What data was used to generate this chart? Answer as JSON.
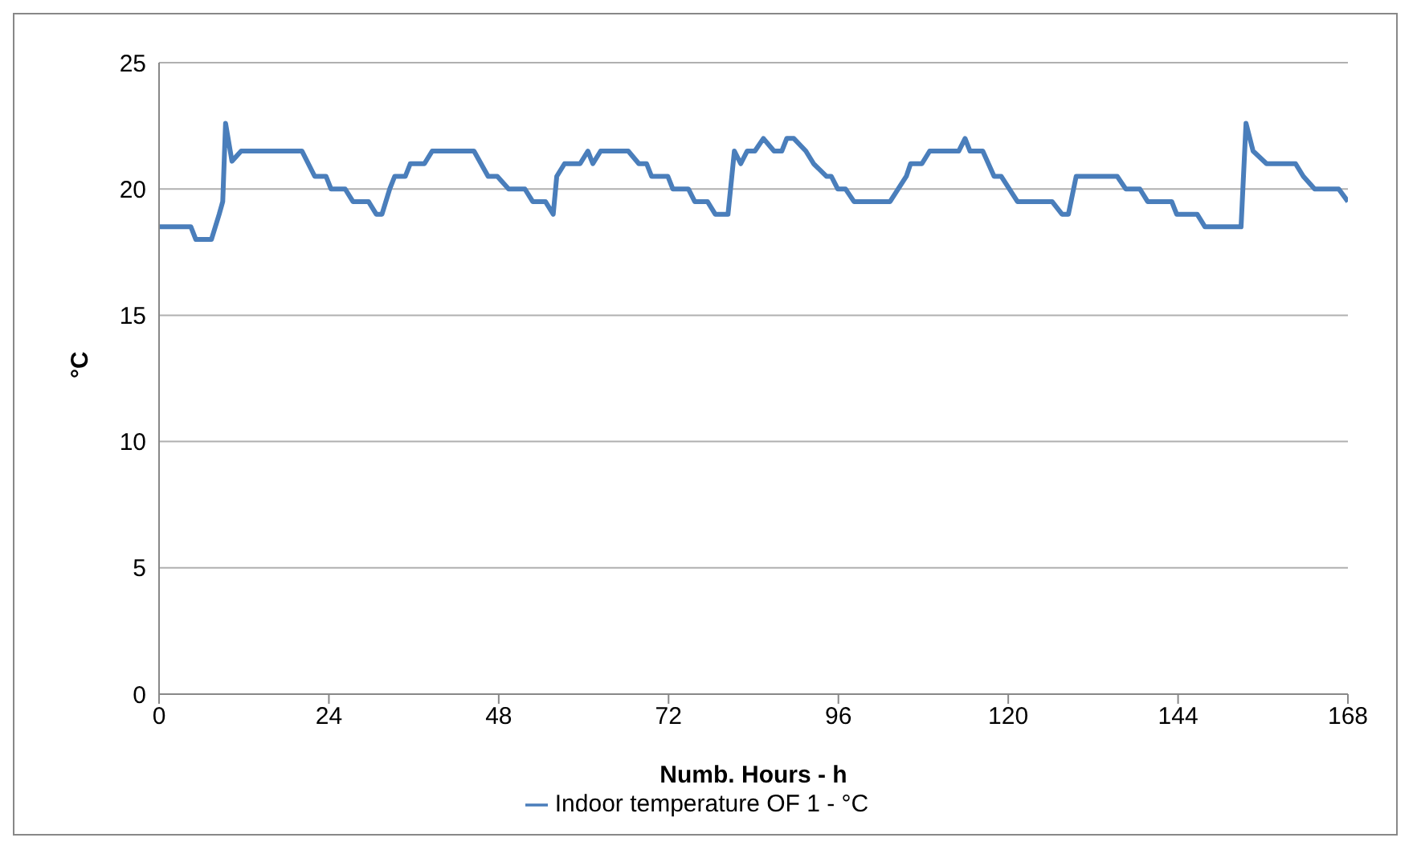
{
  "chart_data": {
    "type": "line",
    "xlabel": "Numb. Hours - h",
    "ylabel": "°C",
    "xlim": [
      0,
      168
    ],
    "xticks": [
      0,
      24,
      48,
      72,
      96,
      120,
      144,
      168
    ],
    "ylim": [
      0,
      25
    ],
    "yticks": [
      0,
      5,
      10,
      15,
      20,
      25
    ],
    "grid": "y",
    "legend": "bottom",
    "marker": "none",
    "line_style": "solid",
    "series": [
      {
        "name": "Indoor temperature OF 1 - °C",
        "color": "#4a7ebb",
        "x": [
          0,
          4.5,
          5.2,
          7.4,
          8.5,
          9,
          9.4,
          10.3,
          11.6,
          20.2,
          22,
          23.6,
          24.3,
          26.3,
          27.4,
          29.6,
          30.7,
          31.5,
          32.6,
          33.3,
          34.8,
          35.5,
          37.5,
          38.6,
          44.5,
          46.5,
          47.8,
          49.4,
          51.7,
          52.8,
          54.6,
          55.7,
          56.2,
          57.3,
          59.5,
          60.6,
          61.3,
          62.4,
          66.3,
          67.8,
          68.9,
          69.6,
          71.9,
          72.6,
          74.8,
          75.7,
          77.5,
          78.6,
          80.4,
          81.3,
          82.2,
          83.1,
          84.2,
          85.4,
          86.9,
          88,
          88.7,
          89.7,
          91.4,
          92.5,
          94.3,
          95,
          95.9,
          97,
          98.2,
          103.3,
          105.6,
          106.2,
          107.8,
          108.9,
          113,
          113.9,
          114.6,
          116.4,
          118,
          119,
          121.3,
          126.2,
          127.6,
          128.5,
          129.6,
          135.4,
          136.6,
          138.6,
          139.7,
          143.1,
          143.8,
          146.7,
          147.8,
          152.9,
          153.6,
          154.6,
          156.5,
          160.6,
          161.7,
          163.3,
          166.7,
          168
        ],
        "values": [
          18.5,
          18.5,
          18,
          18,
          19,
          19.5,
          22.6,
          21.1,
          21.5,
          21.5,
          20.5,
          20.5,
          20,
          20,
          19.5,
          19.5,
          19,
          19,
          20,
          20.5,
          20.5,
          21,
          21,
          21.5,
          21.5,
          20.5,
          20.5,
          20,
          20,
          19.5,
          19.5,
          19,
          20.5,
          21,
          21,
          21.5,
          21,
          21.5,
          21.5,
          21,
          21,
          20.5,
          20.5,
          20,
          20,
          19.5,
          19.5,
          19,
          19,
          21.5,
          21,
          21.5,
          21.5,
          22,
          21.5,
          21.5,
          22,
          22,
          21.5,
          21,
          20.5,
          20.5,
          20,
          20,
          19.5,
          19.5,
          20.5,
          21,
          21,
          21.5,
          21.5,
          22,
          21.5,
          21.5,
          20.5,
          20.5,
          19.5,
          19.5,
          19,
          19,
          20.5,
          20.5,
          20,
          20,
          19.5,
          19.5,
          19,
          19,
          18.5,
          18.5,
          22.6,
          21.5,
          21,
          21,
          20.5,
          20,
          20,
          19.5
        ]
      }
    ]
  }
}
